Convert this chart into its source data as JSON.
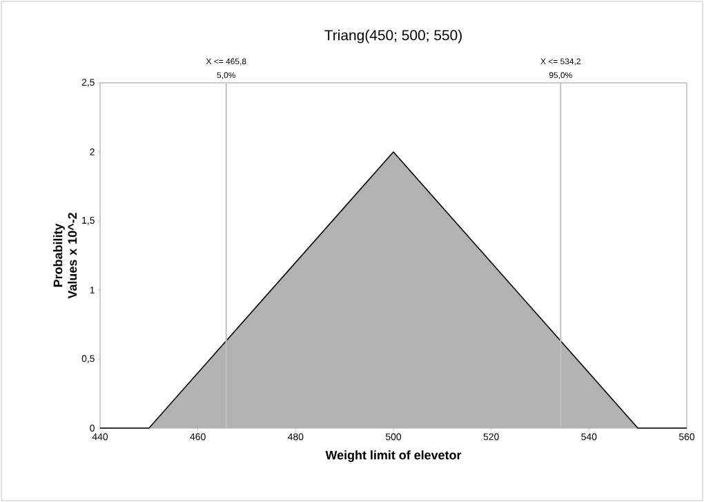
{
  "chart_data": {
    "type": "area",
    "title": "Triang(450; 500; 550)",
    "xlabel": "Weight limit of elevetor",
    "ylabel": "Probability Values x 10^-2",
    "x": [
      440,
      450,
      500,
      550,
      560
    ],
    "series": [
      {
        "color": "#000000",
        "values": [
          0,
          0,
          2,
          0,
          0
        ]
      }
    ],
    "xlim": [
      440,
      560
    ],
    "xticks": [
      440,
      460,
      480,
      500,
      520,
      540,
      560
    ],
    "ylim": [
      0,
      2.5
    ],
    "yticks": [
      0,
      {
        "value": 0.5,
        "label": "0,5"
      },
      1,
      {
        "value": 1.5,
        "label": "1,5"
      },
      2,
      {
        "value": 2.5,
        "label": "2,5"
      }
    ],
    "ref_lines": [
      {
        "axis": "x",
        "value": 465.8,
        "label": "X <= 465,8",
        "color": "#c0c0c0"
      },
      {
        "axis": "x",
        "value": 534.2,
        "label": "X <= 534,2",
        "color": "#c0c0c0"
      }
    ],
    "annotations": [
      {
        "text": "5,0%",
        "x": 465.8,
        "y": 2.5
      },
      {
        "text": "95,0%",
        "x": 534.2,
        "y": 2.5
      }
    ]
  }
}
